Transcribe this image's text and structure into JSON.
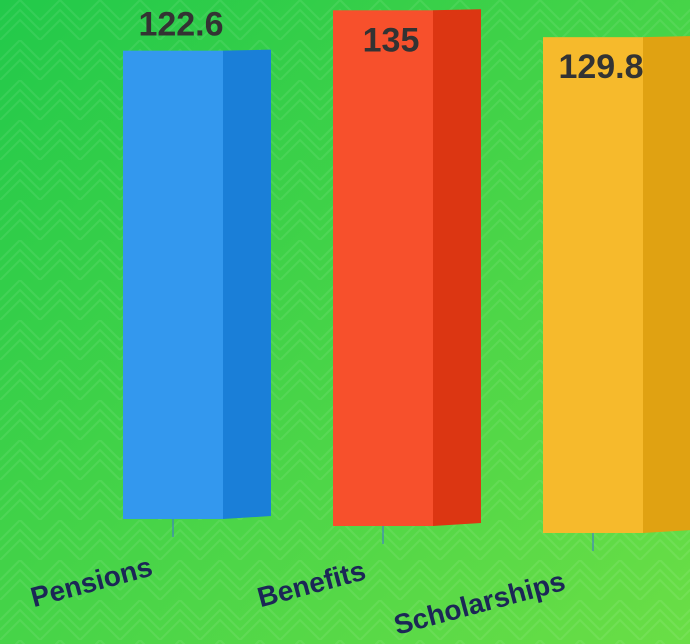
{
  "chart_data": {
    "type": "bar3d",
    "categories": [
      "Pensions",
      "Benefits",
      "Scholarships"
    ],
    "series": [
      {
        "values": [
          122.6,
          135,
          129.8
        ],
        "colors": [
          "#3398ee",
          "#f7502c",
          "#f6ba2c"
        ],
        "side_colors": [
          "#1a7fd8",
          "#dc3612",
          "#e0a212"
        ]
      }
    ]
  }
}
